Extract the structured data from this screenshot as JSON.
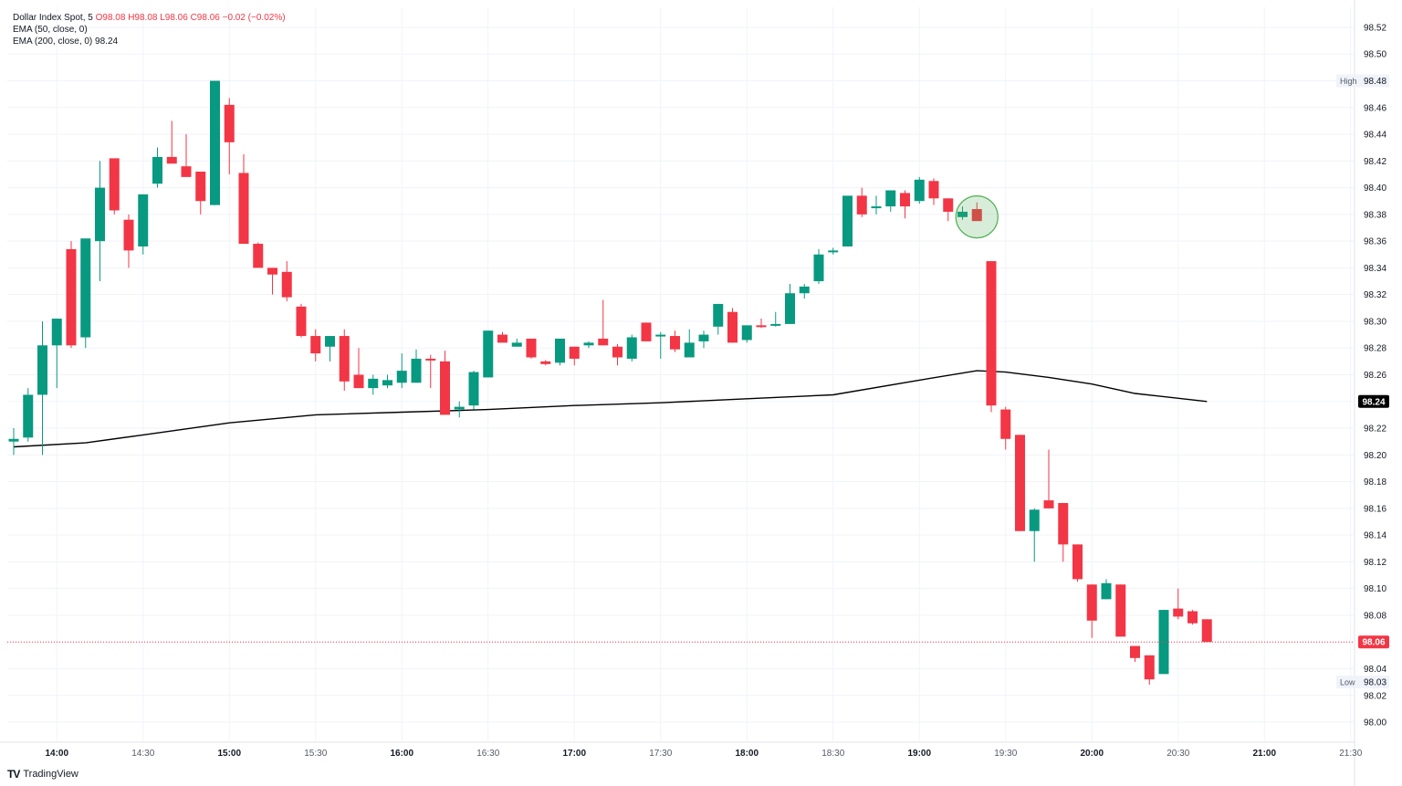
{
  "legend": {
    "symbol": "Dollar Index Spot, 5",
    "ohlc": "O98.08  H98.08  L98.06  C98.06  −0.02 (−0.02%)",
    "ema50": "EMA (50, close, 0)",
    "ema200": "EMA (200, close, 0)",
    "ema200_value": "98.24"
  },
  "brand": {
    "logo": "TV",
    "name": "TradingView"
  },
  "colors": {
    "up": "#089981",
    "down": "#f23645",
    "ema": "#000000",
    "grid": "#f0f3fa",
    "highlight": "#4caf50"
  },
  "chart_data": {
    "type": "candlestick",
    "title": "Dollar Index Spot, 5",
    "ylim": [
      97.985,
      98.535
    ],
    "y_ticks": [
      "98.52",
      "98.50",
      "98.48",
      "98.46",
      "98.44",
      "98.42",
      "98.40",
      "98.38",
      "98.36",
      "98.34",
      "98.32",
      "98.30",
      "98.28",
      "98.26",
      "98.24",
      "98.22",
      "98.20",
      "98.18",
      "98.16",
      "98.14",
      "98.12",
      "98.10",
      "98.08",
      "98.06",
      "98.04",
      "98.02",
      "98.00"
    ],
    "x_ticks": [
      "14:00",
      "14:30",
      "15:00",
      "15:30",
      "16:00",
      "16:30",
      "17:00",
      "17:30",
      "18:00",
      "18:30",
      "19:00",
      "19:30",
      "20:00",
      "20:30",
      "21:00",
      "21:30"
    ],
    "price_labels": {
      "high": {
        "label": "High",
        "value": "98.48"
      },
      "low": {
        "label": "Low",
        "value": "98.03"
      },
      "current": "98.06",
      "ema": "98.24"
    },
    "candles": [
      {
        "t": "13:45",
        "o": 98.21,
        "h": 98.22,
        "l": 98.2,
        "c": 98.212
      },
      {
        "t": "13:50",
        "o": 98.213,
        "h": 98.25,
        "l": 98.21,
        "c": 98.245
      },
      {
        "t": "13:55",
        "o": 98.245,
        "h": 98.3,
        "l": 98.2,
        "c": 98.282
      },
      {
        "t": "14:00",
        "o": 98.282,
        "h": 98.3,
        "l": 98.25,
        "c": 98.302
      },
      {
        "t": "14:05",
        "o": 98.354,
        "h": 98.36,
        "l": 98.28,
        "c": 98.282
      },
      {
        "t": "14:10",
        "o": 98.288,
        "h": 98.36,
        "l": 98.28,
        "c": 98.362
      },
      {
        "t": "14:15",
        "o": 98.36,
        "h": 98.42,
        "l": 98.33,
        "c": 98.4
      },
      {
        "t": "14:20",
        "o": 98.422,
        "h": 98.42,
        "l": 98.38,
        "c": 98.383
      },
      {
        "t": "14:25",
        "o": 98.376,
        "h": 98.38,
        "l": 98.34,
        "c": 98.353
      },
      {
        "t": "14:30",
        "o": 98.356,
        "h": 98.395,
        "l": 98.35,
        "c": 98.395
      },
      {
        "t": "14:35",
        "o": 98.403,
        "h": 98.43,
        "l": 98.4,
        "c": 98.423
      },
      {
        "t": "14:40",
        "o": 98.423,
        "h": 98.45,
        "l": 98.42,
        "c": 98.418
      },
      {
        "t": "14:45",
        "o": 98.416,
        "h": 98.44,
        "l": 98.41,
        "c": 98.408
      },
      {
        "t": "14:50",
        "o": 98.412,
        "h": 98.41,
        "l": 98.38,
        "c": 98.39
      },
      {
        "t": "14:55",
        "o": 98.387,
        "h": 98.48,
        "l": 98.387,
        "c": 98.48
      },
      {
        "t": "15:00",
        "o": 98.462,
        "h": 98.467,
        "l": 98.41,
        "c": 98.434
      },
      {
        "t": "15:05",
        "o": 98.411,
        "h": 98.425,
        "l": 98.36,
        "c": 98.358
      },
      {
        "t": "15:10",
        "o": 98.358,
        "h": 98.359,
        "l": 98.34,
        "c": 98.34
      },
      {
        "t": "15:15",
        "o": 98.34,
        "h": 98.34,
        "l": 98.32,
        "c": 98.335
      },
      {
        "t": "15:20",
        "o": 98.337,
        "h": 98.345,
        "l": 98.315,
        "c": 98.318
      },
      {
        "t": "15:25",
        "o": 98.311,
        "h": 98.313,
        "l": 98.288,
        "c": 98.289
      },
      {
        "t": "15:30",
        "o": 98.289,
        "h": 98.294,
        "l": 98.27,
        "c": 98.276
      },
      {
        "t": "15:35",
        "o": 98.281,
        "h": 98.288,
        "l": 98.27,
        "c": 98.289
      },
      {
        "t": "15:40",
        "o": 98.289,
        "h": 98.294,
        "l": 98.248,
        "c": 98.255
      },
      {
        "t": "15:45",
        "o": 98.26,
        "h": 98.28,
        "l": 98.25,
        "c": 98.25
      },
      {
        "t": "15:50",
        "o": 98.25,
        "h": 98.26,
        "l": 98.245,
        "c": 98.257
      },
      {
        "t": "15:55",
        "o": 98.252,
        "h": 98.26,
        "l": 98.25,
        "c": 98.256
      },
      {
        "t": "16:00",
        "o": 98.254,
        "h": 98.276,
        "l": 98.25,
        "c": 98.263
      },
      {
        "t": "16:05",
        "o": 98.254,
        "h": 98.279,
        "l": 98.254,
        "c": 98.272
      },
      {
        "t": "16:10",
        "o": 98.272,
        "h": 98.275,
        "l": 98.25,
        "c": 98.271
      },
      {
        "t": "16:15",
        "o": 98.27,
        "h": 98.278,
        "l": 98.23,
        "c": 98.23
      },
      {
        "t": "16:20",
        "o": 98.234,
        "h": 98.24,
        "l": 98.228,
        "c": 98.236
      },
      {
        "t": "16:25",
        "o": 98.237,
        "h": 98.263,
        "l": 98.234,
        "c": 98.262
      },
      {
        "t": "16:30",
        "o": 98.258,
        "h": 98.293,
        "l": 98.258,
        "c": 98.293
      },
      {
        "t": "16:35",
        "o": 98.29,
        "h": 98.292,
        "l": 98.284,
        "c": 98.284
      },
      {
        "t": "16:40",
        "o": 98.281,
        "h": 98.287,
        "l": 98.282,
        "c": 98.284
      },
      {
        "t": "16:45",
        "o": 98.287,
        "h": 98.287,
        "l": 98.272,
        "c": 98.273
      },
      {
        "t": "16:50",
        "o": 98.27,
        "h": 98.271,
        "l": 98.267,
        "c": 98.268
      },
      {
        "t": "16:55",
        "o": 98.269,
        "h": 98.285,
        "l": 98.267,
        "c": 98.287
      },
      {
        "t": "17:00",
        "o": 98.281,
        "h": 98.281,
        "l": 98.267,
        "c": 98.272
      },
      {
        "t": "17:05",
        "o": 98.282,
        "h": 98.285,
        "l": 98.28,
        "c": 98.284
      },
      {
        "t": "17:10",
        "o": 98.287,
        "h": 98.316,
        "l": 98.282,
        "c": 98.282
      },
      {
        "t": "17:15",
        "o": 98.281,
        "h": 98.283,
        "l": 98.267,
        "c": 98.273
      },
      {
        "t": "17:20",
        "o": 98.272,
        "h": 98.29,
        "l": 98.27,
        "c": 98.288
      },
      {
        "t": "17:25",
        "o": 98.299,
        "h": 98.299,
        "l": 98.286,
        "c": 98.285
      },
      {
        "t": "17:30",
        "o": 98.29,
        "h": 98.292,
        "l": 98.272,
        "c": 98.29
      },
      {
        "t": "17:35",
        "o": 98.289,
        "h": 98.293,
        "l": 98.277,
        "c": 98.279
      },
      {
        "t": "17:40",
        "o": 98.273,
        "h": 98.294,
        "l": 98.273,
        "c": 98.284
      },
      {
        "t": "17:45",
        "o": 98.285,
        "h": 98.293,
        "l": 98.28,
        "c": 98.29
      },
      {
        "t": "17:50",
        "o": 98.296,
        "h": 98.313,
        "l": 98.29,
        "c": 98.313
      },
      {
        "t": "17:55",
        "o": 98.307,
        "h": 98.31,
        "l": 98.284,
        "c": 98.284
      },
      {
        "t": "18:00",
        "o": 98.286,
        "h": 98.297,
        "l": 98.284,
        "c": 98.297
      },
      {
        "t": "18:05",
        "o": 98.297,
        "h": 98.302,
        "l": 98.295,
        "c": 98.296
      },
      {
        "t": "18:10",
        "o": 98.297,
        "h": 98.307,
        "l": 98.296,
        "c": 98.298
      },
      {
        "t": "18:15",
        "o": 98.298,
        "h": 98.328,
        "l": 98.298,
        "c": 98.321
      },
      {
        "t": "18:20",
        "o": 98.321,
        "h": 98.328,
        "l": 98.317,
        "c": 98.326
      },
      {
        "t": "18:25",
        "o": 98.33,
        "h": 98.354,
        "l": 98.328,
        "c": 98.35
      },
      {
        "t": "18:30",
        "o": 98.352,
        "h": 98.355,
        "l": 98.35,
        "c": 98.353
      },
      {
        "t": "18:35",
        "o": 98.356,
        "h": 98.39,
        "l": 98.356,
        "c": 98.394
      },
      {
        "t": "18:40",
        "o": 98.394,
        "h": 98.4,
        "l": 98.378,
        "c": 98.38
      },
      {
        "t": "18:45",
        "o": 98.385,
        "h": 98.394,
        "l": 98.38,
        "c": 98.386
      },
      {
        "t": "18:50",
        "o": 98.386,
        "h": 98.397,
        "l": 98.382,
        "c": 98.398
      },
      {
        "t": "18:55",
        "o": 98.396,
        "h": 98.398,
        "l": 98.377,
        "c": 98.386
      },
      {
        "t": "19:00",
        "o": 98.39,
        "h": 98.408,
        "l": 98.388,
        "c": 98.406
      },
      {
        "t": "19:05",
        "o": 98.405,
        "h": 98.407,
        "l": 98.387,
        "c": 98.392
      },
      {
        "t": "19:10",
        "o": 98.392,
        "h": 98.392,
        "l": 98.375,
        "c": 98.382
      },
      {
        "t": "19:15",
        "o": 98.378,
        "h": 98.386,
        "l": 98.376,
        "c": 98.382
      },
      {
        "t": "19:20",
        "o": 98.384,
        "h": 98.389,
        "l": 98.376,
        "c": 98.375
      },
      {
        "t": "19:25",
        "o": 98.345,
        "h": 98.345,
        "l": 98.232,
        "c": 98.237
      },
      {
        "t": "19:30",
        "o": 98.234,
        "h": 98.236,
        "l": 98.204,
        "c": 98.212
      },
      {
        "t": "19:35",
        "o": 98.215,
        "h": 98.215,
        "l": 98.143,
        "c": 98.143
      },
      {
        "t": "19:40",
        "o": 98.143,
        "h": 98.16,
        "l": 98.12,
        "c": 98.159
      },
      {
        "t": "19:45",
        "o": 98.166,
        "h": 98.204,
        "l": 98.16,
        "c": 98.16
      },
      {
        "t": "19:50",
        "o": 98.164,
        "h": 98.164,
        "l": 98.12,
        "c": 98.133
      },
      {
        "t": "19:55",
        "o": 98.133,
        "h": 98.133,
        "l": 98.105,
        "c": 98.107
      },
      {
        "t": "20:00",
        "o": 98.103,
        "h": 98.103,
        "l": 98.063,
        "c": 98.076
      },
      {
        "t": "20:05",
        "o": 98.092,
        "h": 98.107,
        "l": 98.092,
        "c": 98.104
      },
      {
        "t": "20:10",
        "o": 98.103,
        "h": 98.103,
        "l": 98.064,
        "c": 98.064
      },
      {
        "t": "20:15",
        "o": 98.057,
        "h": 98.057,
        "l": 98.045,
        "c": 98.048
      },
      {
        "t": "20:20",
        "o": 98.05,
        "h": 98.05,
        "l": 98.028,
        "c": 98.032
      },
      {
        "t": "20:25",
        "o": 98.036,
        "h": 98.084,
        "l": 98.036,
        "c": 98.084
      },
      {
        "t": "20:30",
        "o": 98.085,
        "h": 98.1,
        "l": 98.077,
        "c": 98.079
      },
      {
        "t": "20:35",
        "o": 98.083,
        "h": 98.084,
        "l": 98.073,
        "c": 98.074
      },
      {
        "t": "20:40",
        "o": 98.077,
        "h": 98.077,
        "l": 98.06,
        "c": 98.06
      }
    ],
    "ema200": [
      {
        "t": "13:45",
        "v": 98.206
      },
      {
        "t": "14:10",
        "v": 98.209
      },
      {
        "t": "14:30",
        "v": 98.215
      },
      {
        "t": "15:00",
        "v": 98.224
      },
      {
        "t": "15:30",
        "v": 98.23
      },
      {
        "t": "16:00",
        "v": 98.232
      },
      {
        "t": "16:30",
        "v": 98.234
      },
      {
        "t": "17:00",
        "v": 98.237
      },
      {
        "t": "17:30",
        "v": 98.239
      },
      {
        "t": "18:00",
        "v": 98.242
      },
      {
        "t": "18:30",
        "v": 98.245
      },
      {
        "t": "19:00",
        "v": 98.256
      },
      {
        "t": "19:20",
        "v": 98.263
      },
      {
        "t": "19:30",
        "v": 98.262
      },
      {
        "t": "19:45",
        "v": 98.258
      },
      {
        "t": "20:00",
        "v": 98.253
      },
      {
        "t": "20:15",
        "v": 98.246
      },
      {
        "t": "20:40",
        "v": 98.24
      }
    ],
    "highlight_candle": "19:20",
    "grid": true
  }
}
